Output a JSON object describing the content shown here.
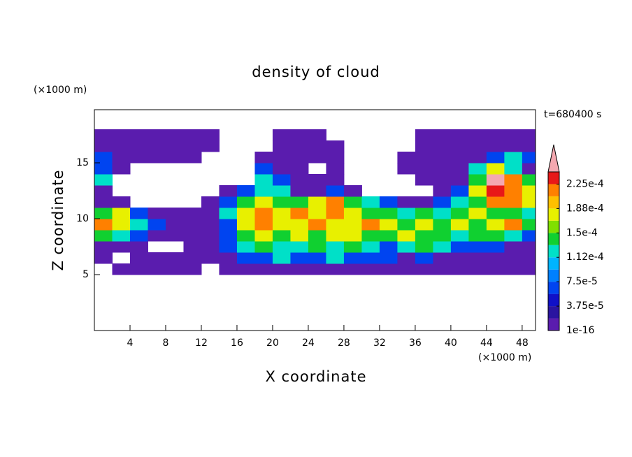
{
  "chart_data": {
    "type": "contour",
    "title": "density of cloud",
    "annotation": "t=680400 s",
    "xlabel": "X coordinate",
    "ylabel": "Z coordinate",
    "xunit": "(×1000 m)",
    "yunit": "(×1000 m)",
    "xlim": [
      0,
      49.5
    ],
    "ylim": [
      0,
      19.75
    ],
    "xticks": [
      4,
      8,
      12,
      16,
      20,
      24,
      28,
      32,
      36,
      40,
      44,
      48
    ],
    "yticks": [
      5,
      10,
      15
    ],
    "x_edges": [
      0,
      2,
      4,
      6,
      8,
      10,
      12,
      14,
      16,
      18,
      20,
      22,
      24,
      26,
      28,
      30,
      32,
      34,
      36,
      38,
      40,
      42,
      44,
      46,
      48,
      50
    ],
    "z_edges": [
      5,
      6,
      7,
      8,
      9,
      10,
      11,
      12,
      13,
      14,
      15,
      16,
      17,
      18
    ],
    "values": [
      [
        null,
        1e-05,
        1e-05,
        1e-05,
        1e-05,
        1e-05,
        null,
        1e-05,
        1e-05,
        1e-05,
        1e-05,
        1e-05,
        1e-05,
        1e-05,
        1e-05,
        1e-05,
        1e-05,
        1e-05,
        1e-05,
        1e-05,
        1e-05,
        1e-05,
        1e-05,
        1e-05,
        1e-05
      ],
      [
        1e-05,
        null,
        1e-05,
        1e-05,
        1e-05,
        1e-05,
        1e-05,
        1e-05,
        6.5e-05,
        6.5e-05,
        0.00012,
        6.5e-05,
        6.5e-05,
        0.00012,
        6.5e-05,
        6.5e-05,
        6.5e-05,
        1e-05,
        6.5e-05,
        1e-05,
        1e-05,
        1e-05,
        1e-05,
        1e-05,
        1e-05
      ],
      [
        1e-05,
        1e-05,
        1e-05,
        null,
        null,
        1e-05,
        1e-05,
        6.5e-05,
        0.00012,
        0.000145,
        0.00012,
        0.00012,
        0.000145,
        0.00012,
        0.000145,
        0.00012,
        6.5e-05,
        0.00012,
        0.000145,
        0.00012,
        6.5e-05,
        6.5e-05,
        6.5e-05,
        1e-05,
        1e-05
      ],
      [
        0.000145,
        0.00012,
        6.5e-05,
        1e-05,
        1e-05,
        1e-05,
        1e-05,
        6.5e-05,
        0.000145,
        0.00018,
        0.000145,
        0.00018,
        0.000145,
        0.00018,
        0.00018,
        0.000145,
        0.000145,
        0.00018,
        0.000145,
        0.000145,
        0.00012,
        0.000145,
        0.000145,
        0.00012,
        6.5e-05
      ],
      [
        0.00021,
        0.00018,
        0.00012,
        6.5e-05,
        1e-05,
        1e-05,
        1e-05,
        6.5e-05,
        0.00018,
        0.00021,
        0.00018,
        0.00018,
        0.00021,
        0.00018,
        0.00018,
        0.00021,
        0.00018,
        0.000145,
        0.00018,
        0.000145,
        0.00018,
        0.000145,
        0.00018,
        0.00021,
        0.000145
      ],
      [
        0.000145,
        0.00018,
        6.5e-05,
        1e-05,
        1e-05,
        1e-05,
        1e-05,
        0.00012,
        0.00018,
        0.00021,
        0.00018,
        0.00021,
        0.00018,
        0.00021,
        0.00018,
        0.000145,
        0.000145,
        0.00012,
        0.000145,
        0.00012,
        0.000145,
        0.00018,
        0.000145,
        0.000145,
        0.00012
      ],
      [
        1e-05,
        1e-05,
        null,
        null,
        null,
        null,
        1e-05,
        6.5e-05,
        0.000145,
        0.00018,
        0.000145,
        0.000145,
        0.00018,
        0.00021,
        0.000145,
        0.00012,
        6.5e-05,
        1e-05,
        1e-05,
        6.5e-05,
        0.00012,
        0.000145,
        0.00021,
        0.00021,
        0.00018
      ],
      [
        1e-05,
        null,
        null,
        null,
        null,
        null,
        null,
        1e-05,
        6.5e-05,
        0.00012,
        0.00012,
        1e-05,
        1e-05,
        6.5e-05,
        1e-05,
        null,
        null,
        null,
        null,
        1e-05,
        6.5e-05,
        0.00018,
        0.00024,
        0.00021,
        0.00018
      ],
      [
        0.00012,
        null,
        null,
        null,
        null,
        null,
        null,
        null,
        null,
        0.00012,
        6.5e-05,
        1e-05,
        1e-05,
        1e-05,
        null,
        null,
        null,
        null,
        1e-05,
        1e-05,
        1e-05,
        0.000145,
        0.00025,
        0.00021,
        0.000145
      ],
      [
        6.5e-05,
        1e-05,
        null,
        null,
        null,
        null,
        null,
        null,
        null,
        6.5e-05,
        1e-05,
        1e-05,
        null,
        1e-05,
        null,
        null,
        null,
        1e-05,
        1e-05,
        1e-05,
        1e-05,
        0.00012,
        0.00018,
        0.00012,
        1e-05
      ],
      [
        6.5e-05,
        1e-05,
        1e-05,
        1e-05,
        1e-05,
        1e-05,
        null,
        null,
        null,
        1e-05,
        1e-05,
        1e-05,
        1e-05,
        1e-05,
        null,
        null,
        null,
        1e-05,
        1e-05,
        1e-05,
        1e-05,
        1e-05,
        6.5e-05,
        0.00012,
        6.5e-05
      ],
      [
        1e-05,
        1e-05,
        1e-05,
        1e-05,
        1e-05,
        1e-05,
        1e-05,
        null,
        null,
        null,
        1e-05,
        1e-05,
        1e-05,
        1e-05,
        null,
        null,
        null,
        null,
        1e-05,
        1e-05,
        1e-05,
        1e-05,
        1e-05,
        1e-05,
        1e-05
      ],
      [
        1e-05,
        1e-05,
        1e-05,
        1e-05,
        1e-05,
        1e-05,
        1e-05,
        null,
        null,
        null,
        1e-05,
        1e-05,
        1e-05,
        null,
        null,
        null,
        null,
        null,
        1e-05,
        1e-05,
        1e-05,
        1e-05,
        1e-05,
        1e-05,
        1e-05
      ]
    ],
    "colorbar": {
      "levels": [
        1e-16,
        1.875e-05,
        3.75e-05,
        5.625e-05,
        7.5e-05,
        9.375e-05,
        0.0001125,
        0.00013125,
        0.00015,
        0.00016875,
        0.0001875,
        0.00020625,
        0.000225,
        0.00024375
      ],
      "colors": [
        "#5a1cae",
        "#2a14a0",
        "#1010c8",
        "#0044f0",
        "#0080ff",
        "#00b4ff",
        "#00e0c8",
        "#10d030",
        "#80e000",
        "#e8f000",
        "#ffc000",
        "#ff8000",
        "#e81818"
      ],
      "extend_color": "#f4a8b0",
      "ticks": [
        {
          "value": 1e-16,
          "label": "1e-16"
        },
        {
          "value": 3.75e-05,
          "label": "3.75e-5"
        },
        {
          "value": 7.5e-05,
          "label": "7.5e-5"
        },
        {
          "value": 0.0001125,
          "label": "1.12e-4"
        },
        {
          "value": 0.00015,
          "label": "1.5e-4"
        },
        {
          "value": 0.0001875,
          "label": "1.88e-4"
        },
        {
          "value": 0.000225,
          "label": "2.25e-4"
        }
      ]
    }
  }
}
